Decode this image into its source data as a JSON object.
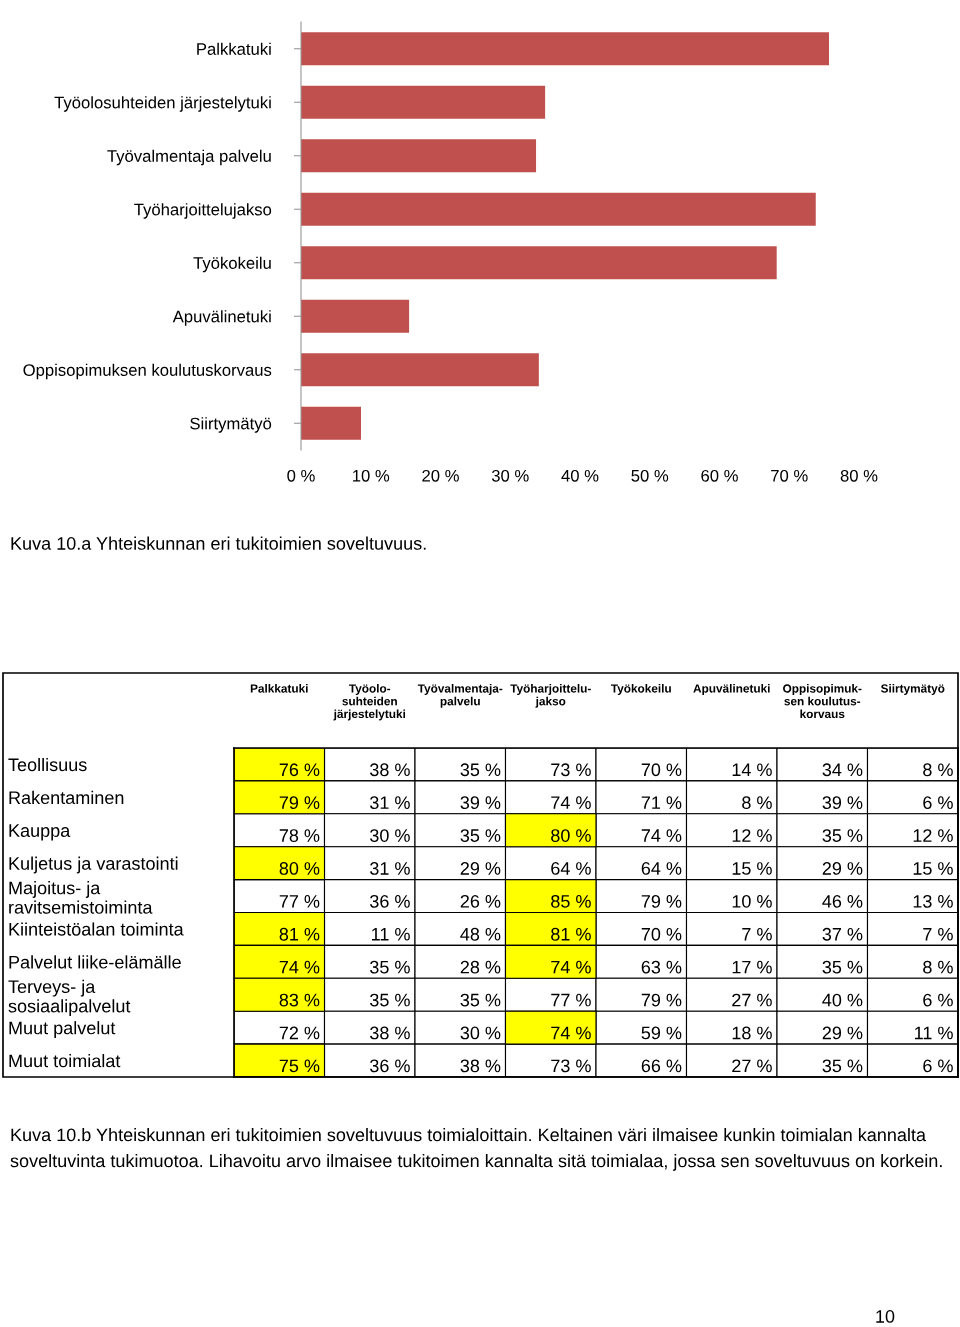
{
  "chart_data": [
    {
      "type": "bar",
      "orientation": "horizontal",
      "categories": [
        "Palkkatuki",
        "Työolosuhteiden järjestelytuki",
        "Työvalmentaja palvelu",
        "Työharjoittelujakso",
        "Työkokeilu",
        "Apuvälinetuki",
        "Oppisopimuksen koulutuskorvaus",
        "Siirtymätyö"
      ],
      "values": [
        75.7,
        35.0,
        33.7,
        73.8,
        68.2,
        15.5,
        34.1,
        8.6
      ],
      "color": "#c0504d",
      "xlim": [
        0,
        80
      ],
      "xticks": [
        {
          "value": 0,
          "label": "0 %"
        },
        {
          "value": 10,
          "label": "10 %"
        },
        {
          "value": 20,
          "label": "20 %"
        },
        {
          "value": 30,
          "label": "30 %"
        },
        {
          "value": 40,
          "label": "40 %"
        },
        {
          "value": 50,
          "label": "50 %"
        },
        {
          "value": 60,
          "label": "60 %"
        },
        {
          "value": 70,
          "label": "70 %"
        },
        {
          "value": 80,
          "label": "80 %"
        }
      ],
      "grid": false,
      "annotations": [
        "Kuva 10.a Yhteiskunnan eri tukitoimien soveltuvuus."
      ]
    },
    {
      "type": "heatmap",
      "categories": [
        "Palkkatuki",
        "Työolo-\nsuhteiden\njärjestelytuki",
        "Työvalmentaja-\npalvelu",
        "Työharjoittelu-\njakso",
        "Työkokeilu",
        "Apuvälinetuki",
        "Oppisopimuk-\nsen koulutus-\nkorvaus",
        "Siirtymätyö"
      ],
      "y_categories": [
        "Teollisuus",
        "Rakentaminen",
        "Kauppa",
        "Kuljetus ja varastointi",
        "Majoitus- ja\nravitsemistoiminta",
        "Kiinteistöalan toiminta",
        "Palvelut liike-elämälle",
        "Terveys- ja\nsosiaalipalvelut",
        "Muut palvelut",
        "Muut toimialat"
      ],
      "cells": [
        [
          76,
          38,
          35,
          73,
          70,
          14,
          34,
          8
        ],
        [
          79,
          31,
          39,
          74,
          71,
          8,
          39,
          6
        ],
        [
          78,
          30,
          35,
          80,
          74,
          12,
          35,
          12
        ],
        [
          80,
          31,
          29,
          64,
          64,
          15,
          29,
          15
        ],
        [
          77,
          36,
          26,
          85,
          79,
          10,
          46,
          13
        ],
        [
          81,
          11,
          48,
          81,
          70,
          7,
          37,
          7
        ],
        [
          74,
          35,
          28,
          74,
          63,
          17,
          35,
          8
        ],
        [
          83,
          35,
          35,
          77,
          79,
          27,
          40,
          6
        ],
        [
          72,
          38,
          30,
          74,
          59,
          18,
          29,
          11
        ],
        [
          75,
          36,
          38,
          73,
          66,
          27,
          35,
          6
        ]
      ],
      "cell_labels": [
        [
          "76 %",
          "38 %",
          "35 %",
          "73 %",
          "70 %",
          "14 %",
          "34 %",
          "8 %"
        ],
        [
          "79 %",
          "31 %",
          "39 %",
          "74 %",
          "71 %",
          "8 %",
          "39 %",
          "6 %"
        ],
        [
          "78 %",
          "30 %",
          "35 %",
          "80 %",
          "74 %",
          "12 %",
          "35 %",
          "12 %"
        ],
        [
          "80 %",
          "31 %",
          "29 %",
          "64 %",
          "64 %",
          "15 %",
          "29 %",
          "15 %"
        ],
        [
          "77 %",
          "36 %",
          "26 %",
          "85 %",
          "79 %",
          "10 %",
          "46 %",
          "13 %"
        ],
        [
          "81 %",
          "11 %",
          "48 %",
          "81 %",
          "70 %",
          "7 %",
          "37 %",
          "7 %"
        ],
        [
          "74 %",
          "35 %",
          "28 %",
          "74 %",
          "63 %",
          "17 %",
          "35 %",
          "8 %"
        ],
        [
          "83 %",
          "35 %",
          "35 %",
          "77 %",
          "79 %",
          "27 %",
          "40 %",
          "6 %"
        ],
        [
          "72 %",
          "38 %",
          "30 %",
          "74 %",
          "59 %",
          "18 %",
          "29 %",
          "11 %"
        ],
        [
          "75 %",
          "36 %",
          "38 %",
          "73 %",
          "66 %",
          "27 %",
          "35 %",
          "6 %"
        ]
      ],
      "colors": [
        [
          "#ffff00",
          null,
          null,
          null,
          null,
          null,
          null,
          null
        ],
        [
          "#ffff00",
          null,
          null,
          null,
          null,
          null,
          null,
          null
        ],
        [
          null,
          null,
          null,
          "#ffff00",
          null,
          null,
          null,
          null
        ],
        [
          "#ffff00",
          null,
          null,
          null,
          null,
          null,
          null,
          null
        ],
        [
          null,
          null,
          null,
          "#ffff00",
          null,
          null,
          null,
          null
        ],
        [
          "#ffff00",
          null,
          null,
          "#ffff00",
          null,
          null,
          null,
          null
        ],
        [
          "#ffff00",
          null,
          null,
          "#ffff00",
          null,
          null,
          null,
          null
        ],
        [
          "#ffff00",
          null,
          null,
          null,
          null,
          null,
          null,
          null
        ],
        [
          null,
          null,
          null,
          "#ffff00",
          null,
          null,
          null,
          null
        ],
        [
          "#ffff00",
          null,
          null,
          null,
          null,
          null,
          null,
          null
        ]
      ],
      "annotations": [
        "Kuva 10.b Yhteiskunnan eri tukitoimien soveltuvuus toimialoittain. Keltainen väri ilmaisee kunkin toimialan kannalta soveltuvinta tukimuotoa. Lihavoitu arvo ilmaisee tukitoimen kannalta sitä toimialaa, jossa sen soveltuvuus on korkein.",
        "10"
      ]
    }
  ]
}
